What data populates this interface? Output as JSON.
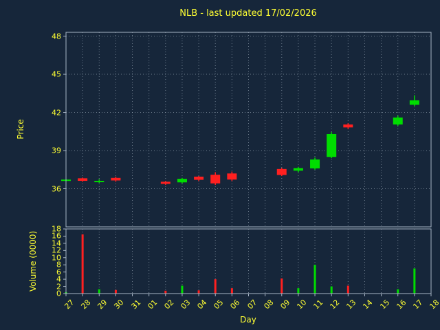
{
  "title": "NLB - last updated 17/02/2026",
  "axes": {
    "price_label": "Price",
    "volume_label": "Volume (0000)",
    "x_label": "Day"
  },
  "colors": {
    "background": "#16263a",
    "text": "#ffff33",
    "grid": "#b9c6d4",
    "spine": "#a8b6c6",
    "up": "#00dd00",
    "down": "#ff2020"
  },
  "chart_data": {
    "type": "candlestick+volume",
    "title": "NLB - last updated 17/02/2026",
    "xlabel": "Day",
    "price_ylabel": "Price",
    "volume_ylabel": "Volume (0000)",
    "legend": "none",
    "grid": "dotted",
    "x_categories": [
      "27",
      "28",
      "29",
      "30",
      "31",
      "01",
      "02",
      "03",
      "04",
      "05",
      "06",
      "07",
      "08",
      "09",
      "10",
      "11",
      "12",
      "13",
      "14",
      "15",
      "16",
      "17",
      "18"
    ],
    "price_ticks": [
      36,
      39,
      42,
      45,
      48
    ],
    "price_range": [
      33.0,
      48.3
    ],
    "volume_ticks": [
      0,
      2,
      4,
      6,
      8,
      10,
      12,
      14,
      16,
      18
    ],
    "volume_range": [
      0,
      18
    ],
    "candles": [
      {
        "day": "27",
        "open": 36.68,
        "high": 36.74,
        "low": 36.62,
        "close": 36.72,
        "dir": "up",
        "volume": 0.4
      },
      {
        "day": "28",
        "open": 36.82,
        "high": 36.88,
        "low": 36.55,
        "close": 36.62,
        "dir": "down",
        "volume": 16.5
      },
      {
        "day": "29",
        "open": 36.55,
        "high": 36.75,
        "low": 36.45,
        "close": 36.62,
        "dir": "up",
        "volume": 1.2
      },
      {
        "day": "30",
        "open": 36.85,
        "high": 36.95,
        "low": 36.55,
        "close": 36.65,
        "dir": "down",
        "volume": 1.0
      },
      {
        "day": "31",
        "open": null,
        "high": null,
        "low": null,
        "close": null,
        "dir": "none",
        "volume": 0
      },
      {
        "day": "01",
        "open": null,
        "high": null,
        "low": null,
        "close": null,
        "dir": "none",
        "volume": 0
      },
      {
        "day": "02",
        "open": 36.55,
        "high": 36.6,
        "low": 36.3,
        "close": 36.38,
        "dir": "down",
        "volume": 0.8
      },
      {
        "day": "03",
        "open": 36.5,
        "high": 36.85,
        "low": 36.42,
        "close": 36.78,
        "dir": "up",
        "volume": 2.2
      },
      {
        "day": "04",
        "open": 36.95,
        "high": 37.0,
        "low": 36.6,
        "close": 36.7,
        "dir": "down",
        "volume": 0.9
      },
      {
        "day": "05",
        "open": 37.1,
        "high": 37.3,
        "low": 36.3,
        "close": 36.42,
        "dir": "down",
        "volume": 4.0
      },
      {
        "day": "06",
        "open": 37.2,
        "high": 37.35,
        "low": 36.6,
        "close": 36.72,
        "dir": "down",
        "volume": 1.5
      },
      {
        "day": "07",
        "open": null,
        "high": null,
        "low": null,
        "close": null,
        "dir": "none",
        "volume": 0
      },
      {
        "day": "08",
        "open": null,
        "high": null,
        "low": null,
        "close": null,
        "dir": "none",
        "volume": 0
      },
      {
        "day": "09",
        "open": 37.55,
        "high": 37.65,
        "low": 37.0,
        "close": 37.08,
        "dir": "down",
        "volume": 4.2
      },
      {
        "day": "10",
        "open": 37.42,
        "high": 37.72,
        "low": 37.3,
        "close": 37.62,
        "dir": "up",
        "volume": 1.5
      },
      {
        "day": "11",
        "open": 37.6,
        "high": 38.45,
        "low": 37.5,
        "close": 38.3,
        "dir": "up",
        "volume": 8.0
      },
      {
        "day": "12",
        "open": 38.5,
        "high": 40.45,
        "low": 38.4,
        "close": 40.3,
        "dir": "up",
        "volume": 2.0
      },
      {
        "day": "13",
        "open": 41.05,
        "high": 41.15,
        "low": 40.7,
        "close": 40.82,
        "dir": "down",
        "volume": 2.2
      },
      {
        "day": "14",
        "open": null,
        "high": null,
        "low": null,
        "close": null,
        "dir": "none",
        "volume": 0
      },
      {
        "day": "15",
        "open": null,
        "high": null,
        "low": null,
        "close": null,
        "dir": "none",
        "volume": 0
      },
      {
        "day": "16",
        "open": 41.05,
        "high": 41.75,
        "low": 40.95,
        "close": 41.6,
        "dir": "up",
        "volume": 1.2
      },
      {
        "day": "17",
        "open": 42.6,
        "high": 43.35,
        "low": 42.5,
        "close": 42.95,
        "dir": "up",
        "volume": 7.0
      },
      {
        "day": "18",
        "open": null,
        "high": null,
        "low": null,
        "close": null,
        "dir": "none",
        "volume": 0
      }
    ]
  }
}
